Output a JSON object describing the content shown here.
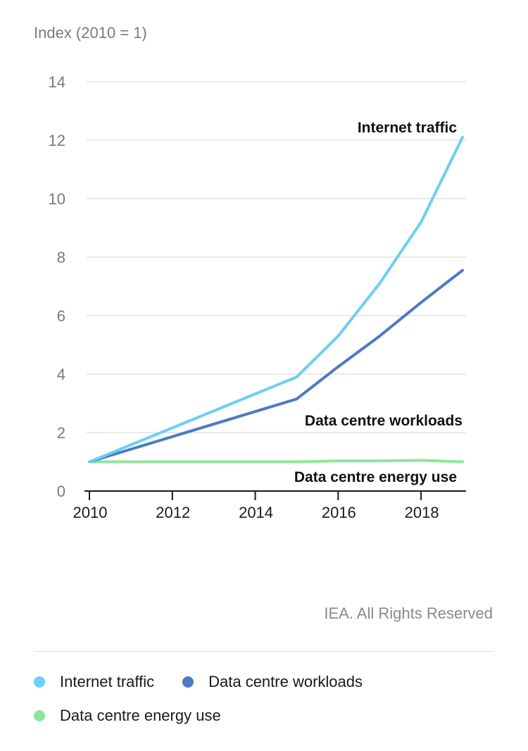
{
  "chart_data": {
    "type": "line",
    "ylabel": "Index (2010 = 1)",
    "ylim": [
      0,
      14
    ],
    "yticks": [
      0,
      2,
      4,
      6,
      8,
      10,
      12,
      14
    ],
    "xlim": [
      2010,
      2019
    ],
    "xticks": [
      2010,
      2012,
      2014,
      2016,
      2018
    ],
    "grid": true,
    "legend_position": "bottom",
    "series": [
      {
        "name": "Internet traffic",
        "color": "#6ccff6",
        "x": [
          2010,
          2015,
          2016,
          2017,
          2018,
          2019
        ],
        "values": [
          1.0,
          3.9,
          5.3,
          7.1,
          9.2,
          12.1
        ]
      },
      {
        "name": "Data centre workloads",
        "color": "#4e79c4",
        "x": [
          2010,
          2015,
          2016,
          2017,
          2018,
          2019
        ],
        "values": [
          1.0,
          3.15,
          4.25,
          5.3,
          6.45,
          7.55
        ]
      },
      {
        "name": "Data centre energy use",
        "color": "#8ee69b",
        "x": [
          2010,
          2015,
          2016,
          2017,
          2018,
          2019
        ],
        "values": [
          1.0,
          1.0,
          1.03,
          1.03,
          1.05,
          1.0
        ]
      }
    ],
    "annotations": [
      "Internet traffic",
      "Data centre workloads",
      "Data centre energy use"
    ]
  },
  "credit": "IEA. All Rights Reserved"
}
